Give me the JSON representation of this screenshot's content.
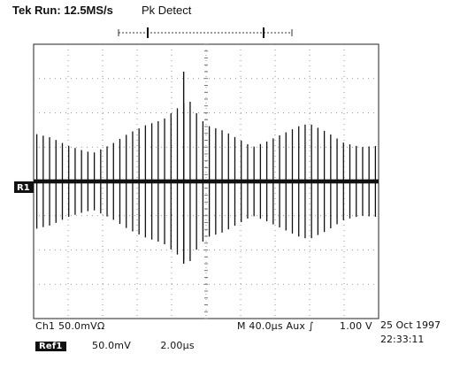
{
  "header": {
    "run_label": "Tek Run: 12.5MS/s",
    "mode_label": "Pk Detect"
  },
  "channel_marker": "R1",
  "status_line": {
    "ch1": "Ch1  50.0mVΩ",
    "timebase": "M 40.0µs  Aux ∫",
    "trigger_level": "1.00 V"
  },
  "ref_line": {
    "badge": "Ref1",
    "volts": "50.0mV",
    "time": "2.00µs"
  },
  "timestamp": {
    "date": "25 Oct 1997",
    "time": "22:33:11"
  },
  "chart_data": {
    "type": "line",
    "title": "",
    "xlabel": "",
    "ylabel": "",
    "grid": true,
    "divisions": {
      "x": 10,
      "y": 8
    },
    "xlim": [
      0,
      20
    ],
    "ylim": [
      -200,
      200
    ],
    "pulse_count": 54,
    "baseline_noise": 3,
    "series": [
      {
        "values": [
          [
            0.0,
            70
          ],
          [
            1.0,
            64
          ],
          [
            2.0,
            52
          ],
          [
            3.0,
            44
          ],
          [
            3.5,
            42
          ],
          [
            4.5,
            54
          ],
          [
            5.5,
            70
          ],
          [
            6.5,
            82
          ],
          [
            7.5,
            90
          ],
          [
            8.5,
            110
          ],
          [
            9.0,
            120
          ],
          [
            9.3,
            104
          ],
          [
            10.0,
            82
          ],
          [
            11.0,
            74
          ],
          [
            12.0,
            60
          ],
          [
            12.7,
            50
          ],
          [
            13.5,
            58
          ],
          [
            14.5,
            70
          ],
          [
            15.5,
            82
          ],
          [
            16.0,
            84
          ],
          [
            17.0,
            72
          ],
          [
            18.0,
            56
          ],
          [
            19.0,
            50
          ],
          [
            20.0,
            52
          ]
        ]
      }
    ],
    "spikes": [
      {
        "x": 8.7,
        "value": 160
      },
      {
        "x": 8.7,
        "value": -120
      }
    ]
  }
}
